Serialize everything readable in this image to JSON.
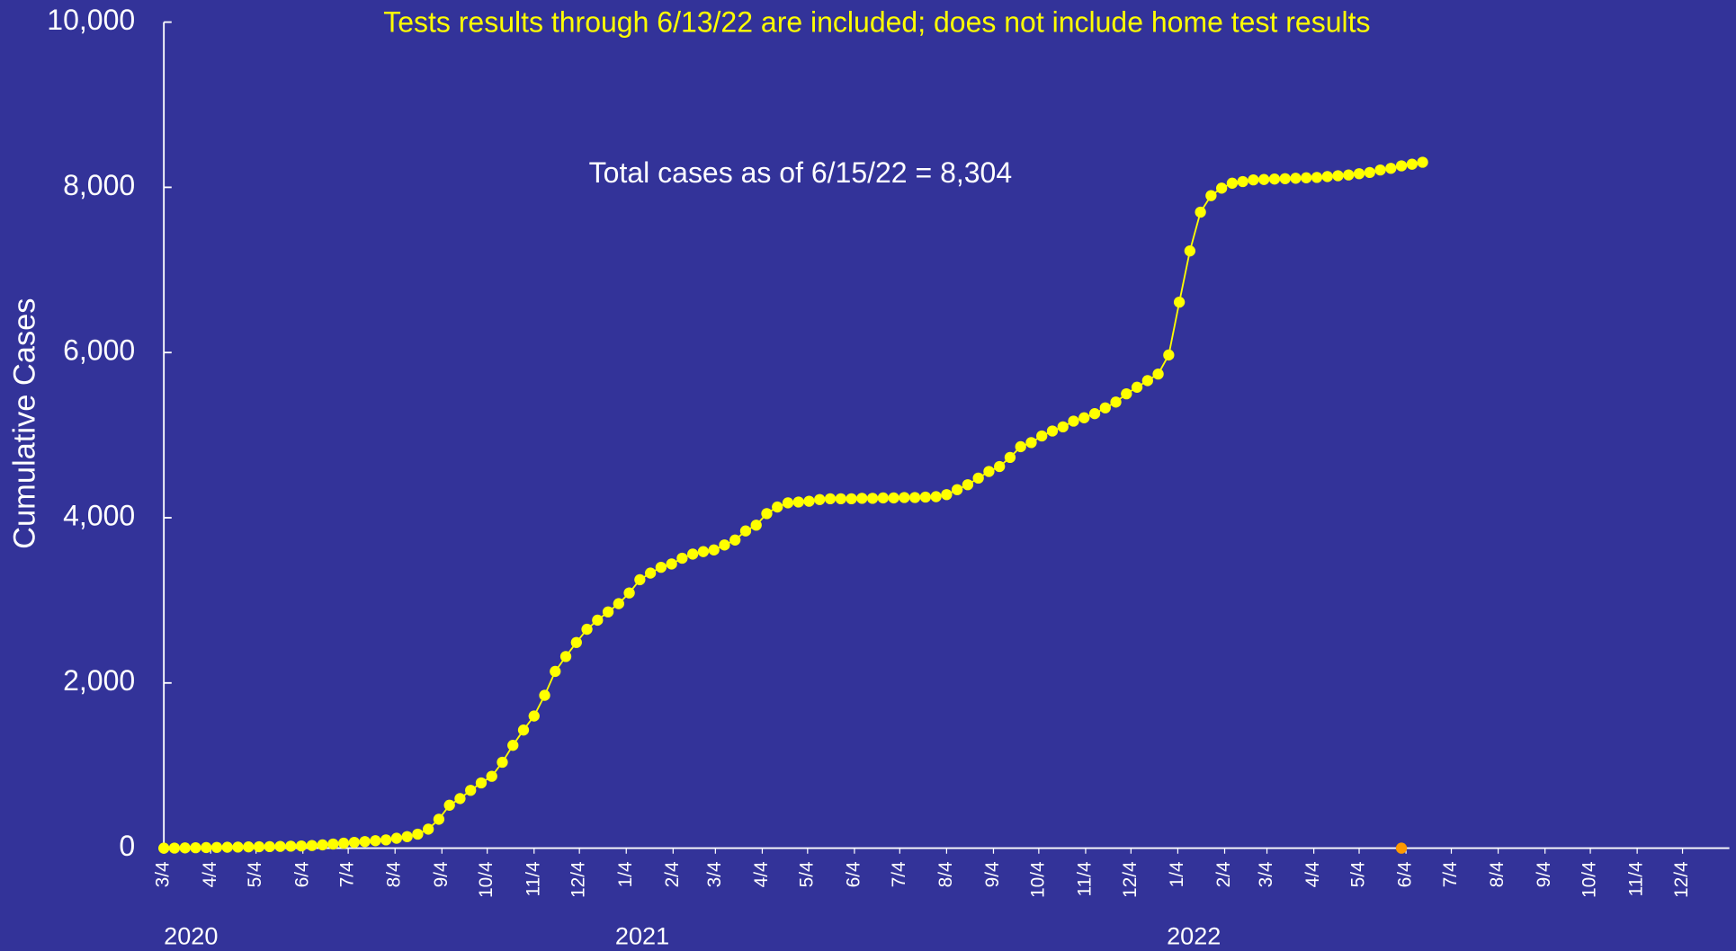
{
  "chart_data": {
    "type": "line",
    "title": "Tests results through 6/13/22 are included; does not include home test results",
    "annotation": "Total cases as of 6/15/22 = 8,304",
    "ylabel": "Cumulative Cases",
    "year_labels": [
      "2020",
      "2021",
      "2022"
    ],
    "ylim": [
      0,
      10000
    ],
    "yticks": [
      0,
      {
        "value": 2000,
        "label": "2,000"
      },
      {
        "value": 4000,
        "label": "4,000"
      },
      {
        "value": 6000,
        "label": "6,000"
      },
      {
        "value": 8000,
        "label": "8,000"
      },
      {
        "value": 10000,
        "label": "10,000"
      }
    ],
    "xlim": [
      "2020-03-04",
      "2023-01-04"
    ],
    "xticks": [
      {
        "value": "2020-03-04",
        "label": "3/4"
      },
      {
        "value": "2020-04-04",
        "label": "4/4"
      },
      {
        "value": "2020-05-04",
        "label": "5/4"
      },
      {
        "value": "2020-06-04",
        "label": "6/4"
      },
      {
        "value": "2020-07-04",
        "label": "7/4"
      },
      {
        "value": "2020-08-04",
        "label": "8/4"
      },
      {
        "value": "2020-09-04",
        "label": "9/4"
      },
      {
        "value": "2020-10-04",
        "label": "10/4"
      },
      {
        "value": "2020-11-04",
        "label": "11/4"
      },
      {
        "value": "2020-12-04",
        "label": "12/4"
      },
      {
        "value": "2021-01-04",
        "label": "1/4"
      },
      {
        "value": "2021-02-04",
        "label": "2/4"
      },
      {
        "value": "2021-03-04",
        "label": "3/4"
      },
      {
        "value": "2021-04-04",
        "label": "4/4"
      },
      {
        "value": "2021-05-04",
        "label": "5/4"
      },
      {
        "value": "2021-06-04",
        "label": "6/4"
      },
      {
        "value": "2021-07-04",
        "label": "7/4"
      },
      {
        "value": "2021-08-04",
        "label": "8/4"
      },
      {
        "value": "2021-09-04",
        "label": "9/4"
      },
      {
        "value": "2021-10-04",
        "label": "10/4"
      },
      {
        "value": "2021-11-04",
        "label": "11/4"
      },
      {
        "value": "2021-12-04",
        "label": "12/4"
      },
      {
        "value": "2022-01-04",
        "label": "1/4"
      },
      {
        "value": "2022-02-04",
        "label": "2/4"
      },
      {
        "value": "2022-03-04",
        "label": "3/4"
      },
      {
        "value": "2022-04-04",
        "label": "4/4"
      },
      {
        "value": "2022-05-04",
        "label": "5/4"
      },
      {
        "value": "2022-06-04",
        "label": "6/4"
      },
      {
        "value": "2022-07-04",
        "label": "7/4"
      },
      {
        "value": "2022-08-04",
        "label": "8/4"
      },
      {
        "value": "2022-09-04",
        "label": "9/4"
      },
      {
        "value": "2022-10-04",
        "label": "10/4"
      },
      {
        "value": "2022-11-04",
        "label": "11/4"
      },
      {
        "value": "2022-12-04",
        "label": "12/4"
      }
    ],
    "series": [
      {
        "color": "#ffff00",
        "x": [
          "2020-03-04",
          "2020-03-11",
          "2020-03-18",
          "2020-03-25",
          "2020-04-01",
          "2020-04-08",
          "2020-04-15",
          "2020-04-22",
          "2020-04-29",
          "2020-05-06",
          "2020-05-13",
          "2020-05-20",
          "2020-05-27",
          "2020-06-03",
          "2020-06-10",
          "2020-06-17",
          "2020-06-24",
          "2020-07-01",
          "2020-07-08",
          "2020-07-15",
          "2020-07-22",
          "2020-07-29",
          "2020-08-05",
          "2020-08-12",
          "2020-08-19",
          "2020-08-26",
          "2020-09-02",
          "2020-09-09",
          "2020-09-16",
          "2020-09-23",
          "2020-09-30",
          "2020-10-07",
          "2020-10-14",
          "2020-10-21",
          "2020-10-28",
          "2020-11-04",
          "2020-11-11",
          "2020-11-18",
          "2020-11-25",
          "2020-12-02",
          "2020-12-09",
          "2020-12-16",
          "2020-12-23",
          "2020-12-30",
          "2021-01-06",
          "2021-01-13",
          "2021-01-20",
          "2021-01-27",
          "2021-02-03",
          "2021-02-10",
          "2021-02-17",
          "2021-02-24",
          "2021-03-03",
          "2021-03-10",
          "2021-03-17",
          "2021-03-24",
          "2021-03-31",
          "2021-04-07",
          "2021-04-14",
          "2021-04-21",
          "2021-04-28",
          "2021-05-05",
          "2021-05-12",
          "2021-05-19",
          "2021-05-26",
          "2021-06-02",
          "2021-06-09",
          "2021-06-16",
          "2021-06-23",
          "2021-06-30",
          "2021-07-07",
          "2021-07-14",
          "2021-07-21",
          "2021-07-28",
          "2021-08-04",
          "2021-08-11",
          "2021-08-18",
          "2021-08-25",
          "2021-09-01",
          "2021-09-08",
          "2021-09-15",
          "2021-09-22",
          "2021-09-29",
          "2021-10-06",
          "2021-10-13",
          "2021-10-20",
          "2021-10-27",
          "2021-11-03",
          "2021-11-10",
          "2021-11-17",
          "2021-11-24",
          "2021-12-01",
          "2021-12-08",
          "2021-12-15",
          "2021-12-22",
          "2021-12-29",
          "2022-01-05",
          "2022-01-12",
          "2022-01-19",
          "2022-01-26",
          "2022-02-02",
          "2022-02-09",
          "2022-02-16",
          "2022-02-23",
          "2022-03-02",
          "2022-03-09",
          "2022-03-16",
          "2022-03-23",
          "2022-03-30",
          "2022-04-06",
          "2022-04-13",
          "2022-04-20",
          "2022-04-27",
          "2022-05-04",
          "2022-05-11",
          "2022-05-18",
          "2022-05-25",
          "2022-06-01",
          "2022-06-08",
          "2022-06-15"
        ],
        "values": [
          0,
          1,
          3,
          5,
          7,
          9,
          11,
          13,
          15,
          17,
          19,
          21,
          24,
          27,
          32,
          40,
          50,
          60,
          70,
          80,
          90,
          100,
          120,
          140,
          170,
          230,
          350,
          520,
          600,
          700,
          790,
          870,
          1040,
          1245,
          1430,
          1600,
          1850,
          2140,
          2320,
          2490,
          2650,
          2760,
          2860,
          2960,
          3090,
          3250,
          3330,
          3400,
          3440,
          3510,
          3560,
          3590,
          3610,
          3670,
          3730,
          3840,
          3910,
          4050,
          4130,
          4180,
          4190,
          4200,
          4220,
          4230,
          4230,
          4230,
          4235,
          4235,
          4240,
          4240,
          4245,
          4245,
          4250,
          4255,
          4280,
          4340,
          4400,
          4480,
          4560,
          4620,
          4730,
          4860,
          4910,
          4990,
          5050,
          5100,
          5170,
          5210,
          5260,
          5330,
          5400,
          5500,
          5580,
          5660,
          5740,
          5970,
          6610,
          7230,
          7700,
          7900,
          7990,
          8050,
          8070,
          8090,
          8095,
          8100,
          8105,
          8110,
          8115,
          8120,
          8130,
          8140,
          8150,
          8165,
          8180,
          8210,
          8230,
          8260,
          8280,
          8304
        ]
      },
      {
        "color": "#ff9900",
        "x": [
          "2022-06-01"
        ],
        "values": [
          0
        ],
        "line": false
      }
    ]
  }
}
